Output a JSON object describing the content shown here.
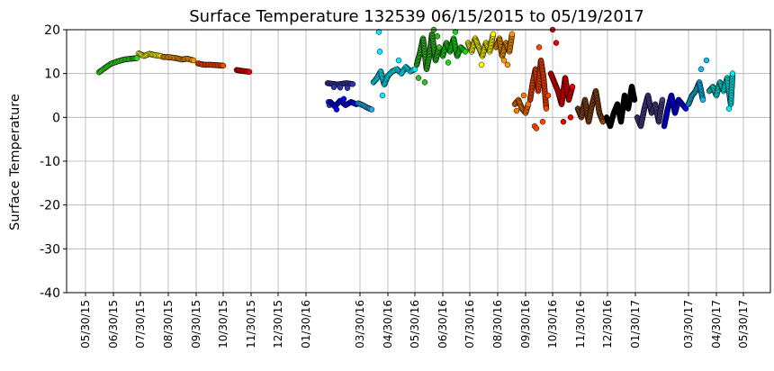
{
  "chart_data": {
    "type": "scatter",
    "title": "Surface Temperature 132539  06/15/2015 to 05/19/2017",
    "xlabel": "",
    "ylabel": "Surface Temperature",
    "xlim": [
      "2015-05-09",
      "2017-06-29"
    ],
    "ylim": [
      -40,
      20
    ],
    "yticks": [
      20,
      10,
      0,
      -10,
      -20,
      -30,
      -40
    ],
    "xticks": [
      {
        "date": "2015-05-30",
        "label": "05/30/15"
      },
      {
        "date": "2015-06-30",
        "label": "06/30/15"
      },
      {
        "date": "2015-07-30",
        "label": "07/30/15"
      },
      {
        "date": "2015-08-30",
        "label": "08/30/15"
      },
      {
        "date": "2015-09-30",
        "label": "09/30/15"
      },
      {
        "date": "2015-10-30",
        "label": "10/30/15"
      },
      {
        "date": "2015-11-30",
        "label": "11/30/15"
      },
      {
        "date": "2015-12-30",
        "label": "12/30/15"
      },
      {
        "date": "2016-01-30",
        "label": "01/30/16"
      },
      {
        "date": "2016-03-30",
        "label": "03/30/16"
      },
      {
        "date": "2016-04-30",
        "label": "04/30/16"
      },
      {
        "date": "2016-05-30",
        "label": "05/30/16"
      },
      {
        "date": "2016-06-30",
        "label": "06/30/16"
      },
      {
        "date": "2016-07-30",
        "label": "07/30/16"
      },
      {
        "date": "2016-08-30",
        "label": "08/30/16"
      },
      {
        "date": "2016-09-30",
        "label": "09/30/16"
      },
      {
        "date": "2016-10-30",
        "label": "10/30/16"
      },
      {
        "date": "2016-11-30",
        "label": "11/30/16"
      },
      {
        "date": "2016-12-30",
        "label": "12/30/16"
      },
      {
        "date": "2017-01-30",
        "label": "01/30/17"
      },
      {
        "date": "2017-03-30",
        "label": "03/30/17"
      },
      {
        "date": "2017-04-30",
        "label": "04/30/17"
      },
      {
        "date": "2017-05-30",
        "label": "05/30/17"
      }
    ],
    "grid": true,
    "legend": "none",
    "series": [
      {
        "color": "#33dd22",
        "track": [
          [
            "2015-06-14",
            10.3
          ],
          [
            "2015-06-20",
            11.2
          ],
          [
            "2015-06-27",
            12.2
          ],
          [
            "2015-07-05",
            12.8
          ],
          [
            "2015-07-12",
            13.2
          ],
          [
            "2015-07-20",
            13.4
          ],
          [
            "2015-07-26",
            13.5
          ]
        ],
        "outliers": []
      },
      {
        "color": "#ffff00",
        "track": [
          [
            "2015-07-28",
            14.6
          ],
          [
            "2015-08-03",
            14.0
          ],
          [
            "2015-08-09",
            14.5
          ],
          [
            "2015-08-15",
            14.2
          ],
          [
            "2015-08-22",
            14.0
          ]
        ],
        "outliers": []
      },
      {
        "color": "#ff9900",
        "track": [
          [
            "2015-08-24",
            13.8
          ],
          [
            "2015-09-01",
            13.7
          ],
          [
            "2015-09-08",
            13.5
          ],
          [
            "2015-09-14",
            13.2
          ],
          [
            "2015-09-20",
            13.4
          ],
          [
            "2015-09-27",
            13.0
          ]
        ],
        "outliers": []
      },
      {
        "color": "#ff4400",
        "track": [
          [
            "2015-10-02",
            12.3
          ],
          [
            "2015-10-09",
            12.0
          ],
          [
            "2015-10-16",
            12.0
          ],
          [
            "2015-10-23",
            11.9
          ],
          [
            "2015-10-30",
            11.8
          ]
        ],
        "outliers": []
      },
      {
        "color": "#ee0000",
        "track": [
          [
            "2015-11-14",
            10.8
          ],
          [
            "2015-11-20",
            10.6
          ],
          [
            "2015-11-28",
            10.4
          ]
        ],
        "outliers": []
      },
      {
        "color": "#3333aa",
        "track": [
          [
            "2016-02-23",
            7.8
          ],
          [
            "2016-03-05",
            7.5
          ],
          [
            "2016-03-15",
            7.8
          ],
          [
            "2016-03-22",
            7.6
          ]
        ],
        "outliers": [
          [
            "2016-02-24",
            3.5
          ],
          [
            "2016-02-25",
            2.8
          ],
          [
            "2016-03-01",
            6.9
          ],
          [
            "2016-03-08",
            6.8
          ],
          [
            "2016-03-16",
            6.7
          ]
        ]
      },
      {
        "color": "#0000ff",
        "track": [
          [
            "2016-02-26",
            3.5
          ],
          [
            "2016-03-02",
            2.5
          ],
          [
            "2016-03-08",
            3.8
          ],
          [
            "2016-03-14",
            2.8
          ],
          [
            "2016-03-20",
            3.5
          ],
          [
            "2016-03-26",
            3.0
          ]
        ],
        "outliers": [
          [
            "2016-03-04",
            1.8
          ],
          [
            "2016-03-12",
            4.2
          ]
        ]
      },
      {
        "color": "#22aaee",
        "track": [
          [
            "2016-03-28",
            3.2
          ],
          [
            "2016-04-02",
            2.8
          ],
          [
            "2016-04-07",
            2.2
          ],
          [
            "2016-04-12",
            1.8
          ]
        ],
        "outliers": []
      },
      {
        "color": "#00eeff",
        "track": [
          [
            "2016-04-14",
            8.0
          ],
          [
            "2016-04-18",
            9.0
          ],
          [
            "2016-04-22",
            10.5
          ],
          [
            "2016-04-26",
            7.5
          ],
          [
            "2016-04-30",
            9.5
          ],
          [
            "2016-05-05",
            10.5
          ],
          [
            "2016-05-10",
            11.0
          ],
          [
            "2016-05-15",
            10.0
          ],
          [
            "2016-05-20",
            11.5
          ],
          [
            "2016-05-25",
            10.5
          ],
          [
            "2016-05-30",
            11.0
          ]
        ],
        "outliers": [
          [
            "2016-04-20",
            19.5
          ],
          [
            "2016-04-21",
            15.0
          ],
          [
            "2016-04-24",
            5.0
          ],
          [
            "2016-05-12",
            13.0
          ]
        ]
      },
      {
        "color": "#33bb22",
        "track": [
          [
            "2016-06-01",
            12
          ],
          [
            "2016-06-05",
            15
          ],
          [
            "2016-06-08",
            18
          ],
          [
            "2016-06-12",
            11
          ],
          [
            "2016-06-15",
            14
          ],
          [
            "2016-06-18",
            19
          ],
          [
            "2016-06-22",
            13
          ],
          [
            "2016-06-26",
            16
          ]
        ],
        "outliers": [
          [
            "2016-06-10",
            8
          ],
          [
            "2016-06-20",
            20
          ],
          [
            "2016-06-03",
            9
          ],
          [
            "2016-06-24",
            18.5
          ]
        ]
      },
      {
        "color": "#11dd11",
        "track": [
          [
            "2016-06-30",
            14
          ],
          [
            "2016-07-04",
            17
          ],
          [
            "2016-07-08",
            15
          ],
          [
            "2016-07-12",
            18
          ],
          [
            "2016-07-16",
            14
          ],
          [
            "2016-07-20",
            16
          ],
          [
            "2016-07-25",
            15
          ]
        ],
        "outliers": [
          [
            "2016-07-06",
            12.5
          ],
          [
            "2016-07-14",
            19.5
          ]
        ]
      },
      {
        "color": "#ffff00",
        "track": [
          [
            "2016-07-28",
            17
          ],
          [
            "2016-08-01",
            15
          ],
          [
            "2016-08-05",
            18
          ],
          [
            "2016-08-09",
            16
          ],
          [
            "2016-08-13",
            14
          ],
          [
            "2016-08-17",
            17
          ],
          [
            "2016-08-21",
            15
          ],
          [
            "2016-08-25",
            19
          ]
        ],
        "outliers": [
          [
            "2016-08-12",
            12
          ]
        ]
      },
      {
        "color": "#ff9900",
        "track": [
          [
            "2016-08-28",
            16
          ],
          [
            "2016-09-01",
            18
          ],
          [
            "2016-09-04",
            14
          ],
          [
            "2016-09-08",
            17
          ],
          [
            "2016-09-12",
            15
          ],
          [
            "2016-09-15",
            19
          ]
        ],
        "outliers": [
          [
            "2016-09-06",
            13
          ],
          [
            "2016-09-10",
            12
          ]
        ]
      },
      {
        "color": "#ff7700",
        "track": [
          [
            "2016-09-18",
            3
          ],
          [
            "2016-09-22",
            4
          ],
          [
            "2016-09-26",
            2
          ],
          [
            "2016-09-30",
            1
          ],
          [
            "2016-10-03",
            3
          ]
        ],
        "outliers": [
          [
            "2016-09-28",
            5
          ],
          [
            "2016-09-20",
            1.5
          ]
        ]
      },
      {
        "color": "#ff4400",
        "track": [
          [
            "2016-10-05",
            4
          ],
          [
            "2016-10-08",
            8
          ],
          [
            "2016-10-11",
            11
          ],
          [
            "2016-10-14",
            6
          ],
          [
            "2016-10-17",
            13
          ],
          [
            "2016-10-20",
            9
          ],
          [
            "2016-10-23",
            2
          ]
        ],
        "outliers": [
          [
            "2016-10-10",
            -2
          ],
          [
            "2016-10-15",
            16
          ],
          [
            "2016-10-25",
            5
          ],
          [
            "2016-10-12",
            -2.5
          ],
          [
            "2016-10-19",
            -1
          ]
        ]
      },
      {
        "color": "#ee0000",
        "track": [
          [
            "2016-10-28",
            10
          ],
          [
            "2016-11-01",
            8
          ],
          [
            "2016-11-05",
            6
          ],
          [
            "2016-11-09",
            3
          ],
          [
            "2016-11-13",
            9
          ],
          [
            "2016-11-17",
            4
          ],
          [
            "2016-11-21",
            7
          ]
        ],
        "outliers": [
          [
            "2016-11-03",
            17
          ],
          [
            "2016-10-30",
            20
          ],
          [
            "2016-11-11",
            -1
          ],
          [
            "2016-11-19",
            0
          ]
        ]
      },
      {
        "color": "#8b4513",
        "track": [
          [
            "2016-11-27",
            2
          ],
          [
            "2016-12-01",
            0
          ],
          [
            "2016-12-05",
            4
          ],
          [
            "2016-12-09",
            -1
          ],
          [
            "2016-12-13",
            3
          ],
          [
            "2016-12-17",
            6
          ],
          [
            "2016-12-21",
            1
          ],
          [
            "2016-12-25",
            -1
          ]
        ],
        "outliers": []
      },
      {
        "color": "#000000",
        "track": [
          [
            "2016-12-29",
            0
          ],
          [
            "2017-01-02",
            -2
          ],
          [
            "2017-01-06",
            1
          ],
          [
            "2017-01-10",
            3
          ],
          [
            "2017-01-14",
            -1
          ],
          [
            "2017-01-18",
            5
          ],
          [
            "2017-01-22",
            2
          ],
          [
            "2017-01-26",
            7
          ],
          [
            "2017-01-29",
            4
          ]
        ],
        "outliers": []
      },
      {
        "color": "#483d8b",
        "track": [
          [
            "2017-02-01",
            0
          ],
          [
            "2017-02-05",
            -2
          ],
          [
            "2017-02-09",
            2
          ],
          [
            "2017-02-13",
            5
          ],
          [
            "2017-02-17",
            1
          ],
          [
            "2017-02-21",
            3
          ],
          [
            "2017-02-25",
            -1
          ],
          [
            "2017-03-01",
            4
          ]
        ],
        "outliers": []
      },
      {
        "color": "#0000ff",
        "track": [
          [
            "2017-03-03",
            -2
          ],
          [
            "2017-03-07",
            2
          ],
          [
            "2017-03-11",
            5
          ],
          [
            "2017-03-15",
            1
          ],
          [
            "2017-03-19",
            4
          ],
          [
            "2017-03-23",
            3
          ],
          [
            "2017-03-27",
            2
          ]
        ],
        "outliers": []
      },
      {
        "color": "#11bbee",
        "track": [
          [
            "2017-03-30",
            3
          ],
          [
            "2017-04-03",
            5
          ],
          [
            "2017-04-07",
            6
          ],
          [
            "2017-04-11",
            8
          ],
          [
            "2017-04-15",
            4
          ]
        ],
        "outliers": [
          [
            "2017-04-19",
            13
          ],
          [
            "2017-04-13",
            11
          ]
        ]
      },
      {
        "color": "#00eeee",
        "track": [
          [
            "2017-04-22",
            6
          ],
          [
            "2017-04-26",
            7
          ],
          [
            "2017-04-30",
            5
          ],
          [
            "2017-05-04",
            8
          ],
          [
            "2017-05-08",
            6
          ],
          [
            "2017-05-12",
            9
          ],
          [
            "2017-05-16",
            3
          ],
          [
            "2017-05-18",
            10
          ]
        ],
        "outliers": [
          [
            "2017-05-14",
            2
          ]
        ]
      }
    ]
  }
}
